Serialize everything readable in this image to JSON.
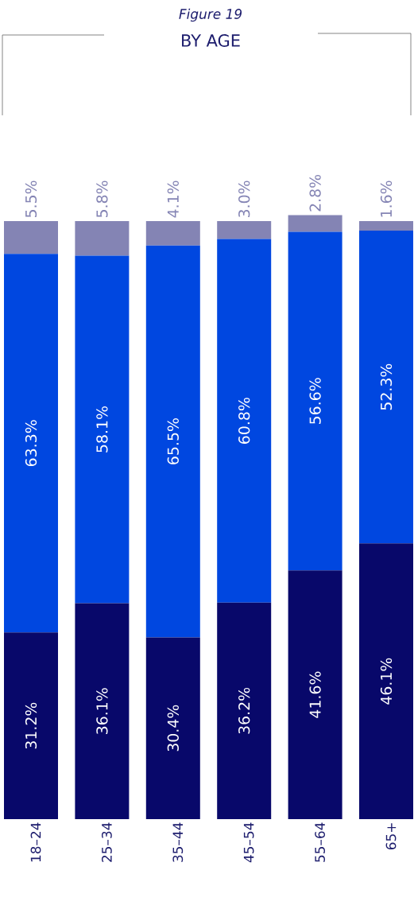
{
  "chart_data": {
    "type": "bar",
    "stacked": true,
    "title": "BY AGE",
    "subtitle": "Figure 19",
    "categories": [
      "18–24",
      "25–34",
      "35–44",
      "45–54",
      "55–64",
      "65+"
    ],
    "series": [
      {
        "color": "#08086a",
        "values": [
          31.2,
          36.1,
          30.4,
          36.2,
          41.6,
          46.1
        ],
        "value_labels": [
          "31.2%",
          "36.1%",
          "30.4%",
          "36.2%",
          "41.6%",
          "46.1%"
        ]
      },
      {
        "color": "#0047e0",
        "values": [
          63.3,
          58.1,
          65.5,
          60.8,
          56.6,
          52.3
        ],
        "value_labels": [
          "63.3%",
          "58.1%",
          "65.5%",
          "60.8%",
          "56.6%",
          "52.3%"
        ]
      },
      {
        "color": "#8484b4",
        "values": [
          5.5,
          5.8,
          4.1,
          3.0,
          2.8,
          1.6
        ],
        "value_labels": [
          "5.5%",
          "5.8%",
          "4.1%",
          "3.0%",
          "2.8%",
          "1.6%"
        ]
      }
    ],
    "ylim": [
      0,
      101
    ]
  }
}
